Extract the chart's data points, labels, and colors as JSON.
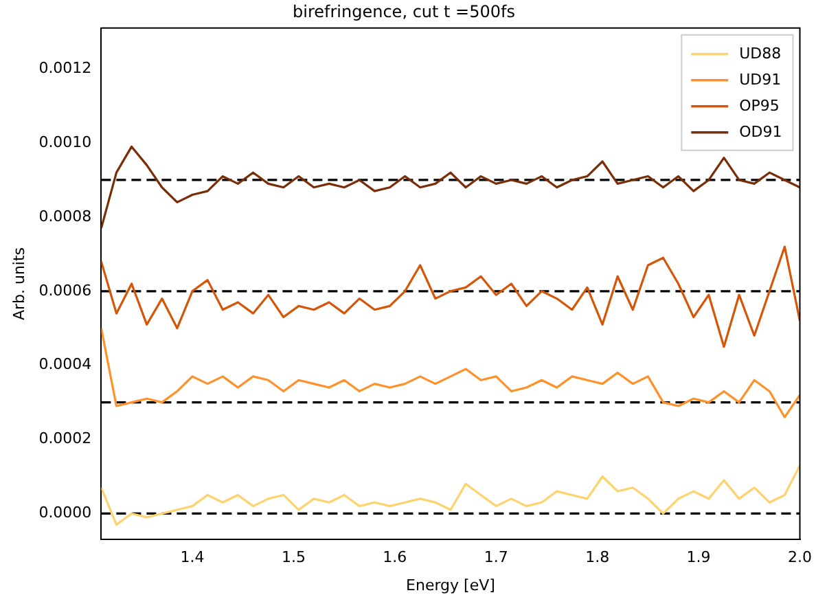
{
  "chart_data": {
    "type": "line",
    "title": "birefringence, cut t =500fs",
    "xlabel": "Energy [eV]",
    "ylabel": "Arb. units",
    "x": [
      1.31,
      1.325,
      1.34,
      1.355,
      1.37,
      1.385,
      1.4,
      1.415,
      1.43,
      1.445,
      1.46,
      1.475,
      1.49,
      1.505,
      1.52,
      1.535,
      1.55,
      1.565,
      1.58,
      1.595,
      1.61,
      1.625,
      1.64,
      1.655,
      1.67,
      1.685,
      1.7,
      1.715,
      1.73,
      1.745,
      1.76,
      1.775,
      1.79,
      1.805,
      1.82,
      1.835,
      1.85,
      1.865,
      1.88,
      1.895,
      1.91,
      1.925,
      1.94,
      1.955,
      1.97,
      1.985,
      2.0
    ],
    "series": [
      {
        "name": "UD88",
        "color": "#fed36e",
        "values": [
          7e-05,
          -3e-05,
          0.0,
          -1e-05,
          0.0,
          1e-05,
          2e-05,
          5e-05,
          3e-05,
          5e-05,
          2e-05,
          4e-05,
          5e-05,
          1e-05,
          4e-05,
          3e-05,
          5e-05,
          2e-05,
          3e-05,
          2e-05,
          3e-05,
          4e-05,
          3e-05,
          1e-05,
          8e-05,
          5e-05,
          2e-05,
          4e-05,
          2e-05,
          3e-05,
          6e-05,
          5e-05,
          4e-05,
          0.0001,
          6e-05,
          7e-05,
          4e-05,
          0.0,
          4e-05,
          6e-05,
          4e-05,
          9e-05,
          4e-05,
          7e-05,
          3e-05,
          5e-05,
          0.00013
        ]
      },
      {
        "name": "UD91",
        "color": "#fe9129",
        "values": [
          0.0005,
          0.00029,
          0.0003,
          0.00031,
          0.0003,
          0.00033,
          0.00037,
          0.00035,
          0.00037,
          0.00034,
          0.00037,
          0.00036,
          0.00033,
          0.00036,
          0.00035,
          0.00034,
          0.00036,
          0.00033,
          0.00035,
          0.00034,
          0.00035,
          0.00037,
          0.00035,
          0.00037,
          0.00039,
          0.00036,
          0.00037,
          0.00033,
          0.00034,
          0.00036,
          0.00034,
          0.00037,
          0.00036,
          0.00035,
          0.00038,
          0.00035,
          0.00037,
          0.0003,
          0.00029,
          0.00031,
          0.0003,
          0.00033,
          0.0003,
          0.00036,
          0.00033,
          0.00026,
          0.00032
        ]
      },
      {
        "name": "OP95",
        "color": "#d55607",
        "values": [
          0.00068,
          0.00054,
          0.00062,
          0.00051,
          0.00058,
          0.0005,
          0.0006,
          0.00063,
          0.00055,
          0.00057,
          0.00054,
          0.00059,
          0.00053,
          0.00056,
          0.00055,
          0.00057,
          0.00054,
          0.00058,
          0.00055,
          0.00056,
          0.0006,
          0.00067,
          0.00058,
          0.0006,
          0.00061,
          0.00064,
          0.00059,
          0.00062,
          0.00056,
          0.0006,
          0.00058,
          0.00055,
          0.00061,
          0.00051,
          0.00064,
          0.00055,
          0.00067,
          0.00069,
          0.00062,
          0.00053,
          0.00059,
          0.00045,
          0.00059,
          0.00048,
          0.0006,
          0.00072,
          0.00052
        ]
      },
      {
        "name": "OD91",
        "color": "#7a2e07",
        "values": [
          0.00077,
          0.00092,
          0.00099,
          0.00094,
          0.00088,
          0.00084,
          0.00086,
          0.00087,
          0.00091,
          0.00089,
          0.00092,
          0.00089,
          0.00088,
          0.00091,
          0.00088,
          0.00089,
          0.00088,
          0.0009,
          0.00087,
          0.00088,
          0.00091,
          0.00088,
          0.00089,
          0.00092,
          0.00088,
          0.00091,
          0.00089,
          0.0009,
          0.00089,
          0.00091,
          0.00088,
          0.0009,
          0.00091,
          0.00095,
          0.00089,
          0.0009,
          0.00091,
          0.00088,
          0.00091,
          0.00087,
          0.0009,
          0.00096,
          0.0009,
          0.00089,
          0.00092,
          0.0009,
          0.00088
        ]
      }
    ],
    "xlim": [
      1.31,
      2.0
    ],
    "xticks": [
      1.4,
      1.5,
      1.6,
      1.7,
      1.8,
      1.9,
      {
        "value": 2,
        "label": "2.0"
      }
    ],
    "ylim": [
      -7e-05,
      0.00131
    ],
    "yticks": [
      {
        "value": 0,
        "label": "0.0000"
      },
      {
        "value": 0.0002,
        "label": "0.0002"
      },
      {
        "value": 0.0004,
        "label": "0.0004"
      },
      {
        "value": 0.0006,
        "label": "0.0006"
      },
      {
        "value": 0.0008,
        "label": "0.0008"
      },
      {
        "value": 0.001,
        "label": "0.0010"
      },
      {
        "value": 0.0012,
        "label": "0.0012"
      }
    ],
    "ref_lines": [
      {
        "axis": "y",
        "value": 0,
        "color": "#000000",
        "line_style": "dashed"
      },
      {
        "axis": "y",
        "value": 0.0003,
        "color": "#000000",
        "line_style": "dashed"
      },
      {
        "axis": "y",
        "value": 0.0006,
        "color": "#000000",
        "line_style": "dashed"
      },
      {
        "axis": "y",
        "value": 0.0009,
        "color": "#000000",
        "line_style": "dashed"
      }
    ],
    "legend": "top right",
    "grid": false,
    "marker": "none",
    "line_style": "solid"
  }
}
